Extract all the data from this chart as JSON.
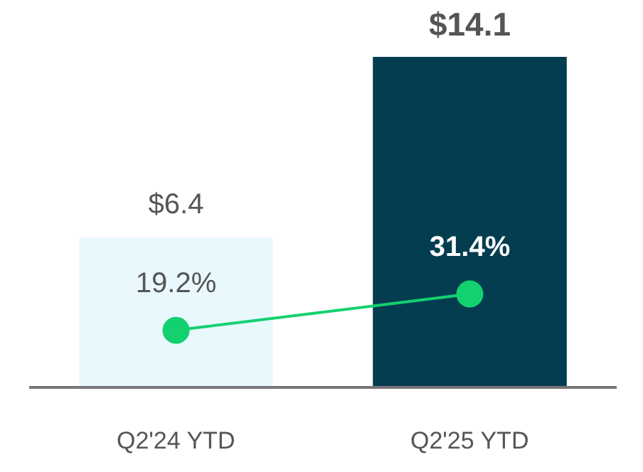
{
  "chart_data": {
    "type": "bar",
    "categories": [
      "Q2'24 YTD",
      "Q2'25 YTD"
    ],
    "series": [
      {
        "colors": [
          "#e9f8fd",
          "#053d50"
        ],
        "values": [
          6.4,
          14.1
        ],
        "value_labels": [
          "$6.4",
          "$14.1"
        ]
      },
      {
        "type": "line",
        "axis": "y2",
        "color": "#13d16f",
        "values": [
          19.2,
          31.4
        ],
        "value_labels": [
          "19.2%",
          "31.4%"
        ]
      }
    ],
    "tick_labels": "x",
    "marker": "circle"
  }
}
